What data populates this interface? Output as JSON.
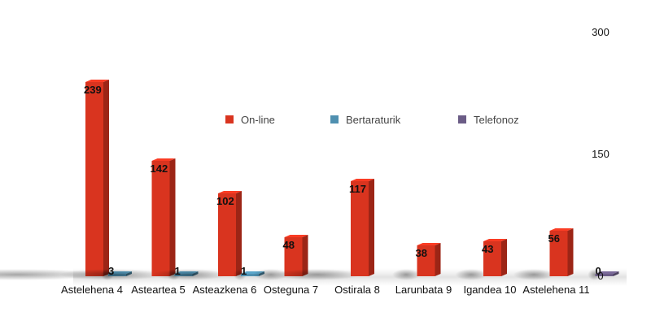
{
  "chart_data": {
    "type": "bar",
    "title": "",
    "xlabel": "",
    "ylabel": "",
    "ylim": [
      0,
      300
    ],
    "y_ticks": [
      0,
      150,
      300
    ],
    "categories": [
      "Astelehena 4",
      "Asteartea 5",
      "Asteazkena 6",
      "Osteguna 7",
      "Ostirala 8",
      "Larunbata 9",
      "Igandea 10",
      "Astelehena 11"
    ],
    "series": [
      {
        "name": "On-line",
        "color": "#d9341f",
        "values": [
          239,
          142,
          102,
          48,
          117,
          38,
          43,
          56
        ]
      },
      {
        "name": "Bertaraturik",
        "color": "#4f90b0",
        "values": [
          3,
          1,
          1,
          null,
          null,
          null,
          null,
          null
        ]
      },
      {
        "name": "Telefonoz",
        "color": "#6b5c86",
        "values": [
          null,
          null,
          null,
          null,
          null,
          null,
          null,
          0
        ]
      }
    ],
    "legend_position": "top-center",
    "grid": false
  }
}
